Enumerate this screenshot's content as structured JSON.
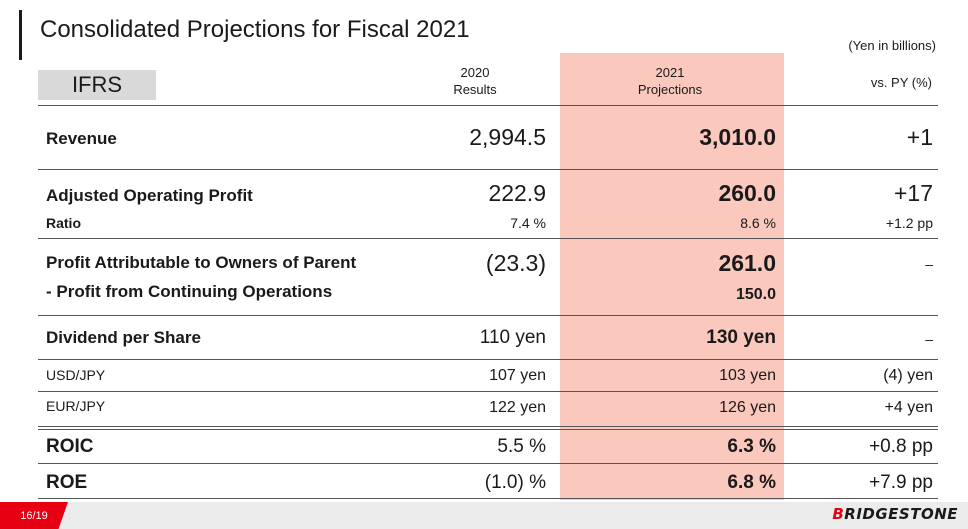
{
  "header": {
    "title": "Consolidated Projections for Fiscal 2021",
    "units": "(Yen in billions)",
    "standard": "IFRS"
  },
  "columns": {
    "results_year": "2020",
    "results_label": "Results",
    "projections_year": "2021",
    "projections_label": "Projections",
    "vs_label": "vs. PY (%)"
  },
  "rows": {
    "revenue": {
      "label": "Revenue",
      "results": "2,994.5",
      "projection": "3,010.0",
      "vs": "+1"
    },
    "adj_op_profit": {
      "label": "Adjusted Operating Profit",
      "results": "222.9",
      "projection": "260.0",
      "vs": "+17"
    },
    "ratio": {
      "label": "Ratio",
      "results": "7.4 %",
      "projection": "8.6 %",
      "vs": "+1.2 pp"
    },
    "profit_owners": {
      "label": "Profit Attributable to Owners of Parent",
      "results": "(23.3)",
      "projection": "261.0",
      "vs": "–"
    },
    "profit_continuing": {
      "label": "- Profit from Continuing Operations",
      "projection": "150.0"
    },
    "dividend": {
      "label": "Dividend per Share",
      "results": "110 yen",
      "projection": "130 yen",
      "vs": "–"
    },
    "usd_jpy": {
      "label": "USD/JPY",
      "results": "107 yen",
      "projection": "103 yen",
      "vs": "(4) yen"
    },
    "eur_jpy": {
      "label": "EUR/JPY",
      "results": "122 yen",
      "projection": "126 yen",
      "vs": "+4 yen"
    },
    "roic": {
      "label": "ROIC",
      "results": "5.5 %",
      "projection": "6.3 %",
      "vs": "+0.8 pp"
    },
    "roe": {
      "label": "ROE",
      "results": "(1.0) %",
      "projection": "6.8 %",
      "vs": "+7.9 pp"
    }
  },
  "footer": {
    "page": "16/19",
    "logo": "BRIDGESTONE"
  },
  "colors": {
    "projection_highlight": "#fac8bd",
    "brand_red": "#e60012"
  }
}
